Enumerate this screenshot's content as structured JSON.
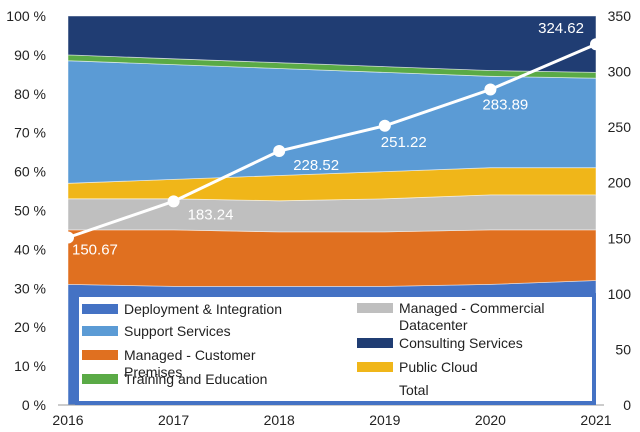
{
  "chart_data": {
    "type": "area",
    "stacked": "percent",
    "categories": [
      "2016",
      "2017",
      "2018",
      "2019",
      "2020",
      "2021"
    ],
    "series": [
      {
        "name": "Deployment & Integration",
        "color": "#4472c4",
        "values": [
          31,
          30.5,
          30.5,
          30.5,
          31,
          32
        ]
      },
      {
        "name": "Managed - Customer Premises",
        "color": "#e07020",
        "values": [
          14,
          14.5,
          14,
          14,
          14,
          13
        ]
      },
      {
        "name": "Managed - Commercial Datacenter",
        "color": "#bfbfbf",
        "values": [
          8,
          8,
          8,
          8.5,
          9,
          9
        ]
      },
      {
        "name": "Public Cloud",
        "color": "#f0b619",
        "values": [
          4,
          5,
          6.5,
          7,
          7,
          7
        ]
      },
      {
        "name": "Support Services",
        "color": "#5b9bd5",
        "values": [
          31.5,
          29.5,
          27.5,
          25.5,
          23.5,
          23
        ]
      },
      {
        "name": "Training and Education",
        "color": "#5aaa46",
        "values": [
          1.5,
          1.5,
          1.5,
          1.5,
          1.5,
          1.5
        ]
      },
      {
        "name": "Consulting Services",
        "color": "#203d73",
        "values": [
          10,
          11,
          12,
          13,
          14,
          14.5
        ]
      }
    ],
    "total": {
      "name": "Total",
      "color": "#ffffff",
      "values": [
        150.67,
        183.24,
        228.52,
        251.22,
        283.89,
        324.62
      ]
    },
    "y_left": {
      "ticks": [
        "0 %",
        "10 %",
        "20 %",
        "30 %",
        "40 %",
        "50 %",
        "60 %",
        "70 %",
        "80 %",
        "90 %",
        "100 %"
      ],
      "ylim": [
        0,
        100
      ]
    },
    "y_right": {
      "ticks": [
        "0",
        "50",
        "100",
        "150",
        "200",
        "250",
        "300",
        "350"
      ],
      "ylim": [
        0,
        350
      ]
    },
    "legend": {
      "placement": "bottom-inside",
      "background": "#4472c4",
      "items_left": [
        "Deployment & Integration",
        "Support Services",
        "Managed - Customer Premises",
        "Training and Education"
      ],
      "items_right": [
        "Managed - Commercial Datacenter",
        "Consulting Services",
        "Public Cloud",
        "Total"
      ]
    }
  }
}
